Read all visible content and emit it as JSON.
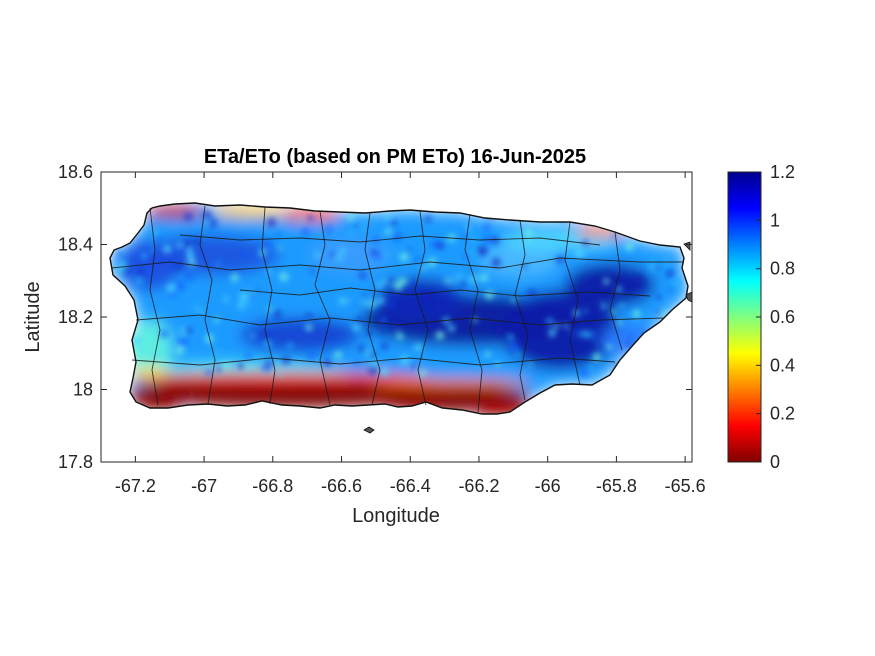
{
  "chart_data": {
    "type": "heatmap",
    "title": "ETa/ETo (based on PM ETo) 16-Jun-2025",
    "xlabel": "Longitude",
    "ylabel": "Latitude",
    "xlim": [
      -67.3,
      -65.58
    ],
    "ylim": [
      17.8,
      18.6
    ],
    "xticks": [
      -67.2,
      -67,
      -66.8,
      -66.6,
      -66.4,
      -66.2,
      -66,
      -65.8,
      -65.6
    ],
    "yticks": [
      17.8,
      18,
      18.2,
      18.4,
      18.6
    ],
    "xtick_labels": [
      "-67.2",
      "-67",
      "-66.8",
      "-66.6",
      "-66.4",
      "-66.2",
      "-66",
      "-65.8",
      "-65.6"
    ],
    "ytick_labels": [
      "17.8",
      "18",
      "18.2",
      "18.4",
      "18.6"
    ],
    "colorbar": {
      "colormap": "jet",
      "range": [
        0,
        1.2
      ],
      "ticks": [
        0,
        0.2,
        0.4,
        0.6,
        0.8,
        1,
        1.2
      ],
      "tick_labels": [
        "0",
        "0.2",
        "0.4",
        "0.6",
        "0.8",
        "1",
        "1.2"
      ]
    },
    "grid": false
  }
}
